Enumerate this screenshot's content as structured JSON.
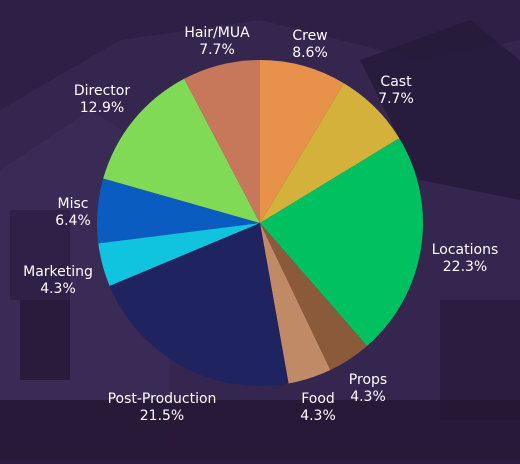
{
  "chart_data": {
    "type": "pie",
    "slices": [
      {
        "label": "Crew",
        "value": 8.6,
        "pct_text": "8.6%",
        "color": "#e8914a"
      },
      {
        "label": "Cast",
        "value": 7.7,
        "pct_text": "7.7%",
        "color": "#d4b13a"
      },
      {
        "label": "Locations",
        "value": 22.3,
        "pct_text": "22.3%",
        "color": "#00c060"
      },
      {
        "label": "Props",
        "value": 4.3,
        "pct_text": "4.3%",
        "color": "#8a5a3b"
      },
      {
        "label": "Food",
        "value": 4.3,
        "pct_text": "4.3%",
        "color": "#c08a66"
      },
      {
        "label": "Post-Production",
        "value": 21.5,
        "pct_text": "21.5%",
        "color": "#1f2360"
      },
      {
        "label": "Marketing",
        "value": 4.3,
        "pct_text": "4.3%",
        "color": "#10c4e0"
      },
      {
        "label": "Misc",
        "value": 6.4,
        "pct_text": "6.4%",
        "color": "#0a5cc0"
      },
      {
        "label": "Director",
        "value": 12.9,
        "pct_text": "12.9%",
        "color": "#80da55"
      },
      {
        "label": "Hair/MUA",
        "value": 7.7,
        "pct_text": "7.7%",
        "color": "#c8785a"
      }
    ],
    "start": "top",
    "direction": "clockwise"
  },
  "background": {
    "tint": "#2e1f48",
    "description_colors": [
      "#3a2a55",
      "#1c1430"
    ]
  }
}
